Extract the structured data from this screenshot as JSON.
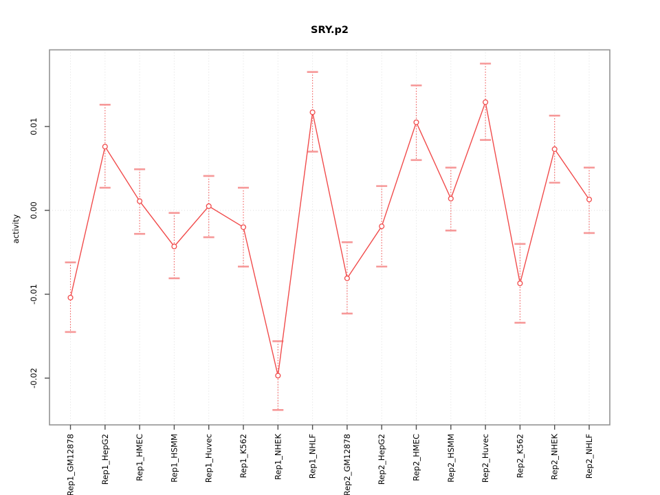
{
  "figure": {
    "background": "#ffffff"
  },
  "chart_data": {
    "type": "line",
    "title": "SRY.p2",
    "xlabel": "",
    "ylabel": "activity",
    "categories": [
      "Rep1_GM12878",
      "Rep1_HepG2",
      "Rep1_HMEC",
      "Rep1_HSMM",
      "Rep1_Huvec",
      "Rep1_K562",
      "Rep1_NHEK",
      "Rep1_NHLF",
      "Rep2_GM12878",
      "Rep2_HepG2",
      "Rep2_HMEC",
      "Rep2_HSMM",
      "Rep2_Huvec",
      "Rep2_K562",
      "Rep2_NHEK",
      "Rep2_NHLF"
    ],
    "series": [
      {
        "name": "activity",
        "marker": "open-circle",
        "values": [
          -0.0104,
          0.0076,
          0.0011,
          -0.0043,
          0.0005,
          -0.002,
          -0.0197,
          0.0117,
          -0.0081,
          -0.0019,
          0.0105,
          0.0014,
          0.0129,
          -0.0087,
          0.0073,
          0.0013
        ],
        "ci_low": [
          -0.0145,
          0.0027,
          -0.0028,
          -0.0081,
          -0.0032,
          -0.0067,
          -0.0238,
          0.007,
          -0.0123,
          -0.0067,
          0.006,
          -0.0024,
          0.0084,
          -0.0134,
          0.0033,
          -0.0027
        ],
        "ci_high": [
          -0.0062,
          0.0126,
          0.0049,
          -0.0003,
          0.0041,
          0.0027,
          -0.0156,
          0.0165,
          -0.0038,
          0.0029,
          0.0149,
          0.0051,
          0.0175,
          -0.004,
          0.0113,
          0.0051
        ]
      }
    ],
    "ytick_labels": [
      "0.01",
      "0.00",
      "-0.01",
      "-0.02"
    ],
    "ytick_values": [
      0.01,
      0.0,
      -0.01,
      -0.02
    ],
    "ylim": [
      -0.0256,
      0.0191
    ],
    "grid": {
      "vertical": "dotted line at every category",
      "horizontal": "dotted line at y = 0"
    },
    "legend": null,
    "colors": {
      "line": "#f14b4b",
      "marker_stroke": "#f14b4b",
      "marker_fill": "#ffffff",
      "error_stem": "#f15555",
      "error_cap": "#f69898",
      "gridline": "#dcdcdc",
      "box": "#929292",
      "tick": "#4d4d4d",
      "text": "#000000"
    }
  }
}
